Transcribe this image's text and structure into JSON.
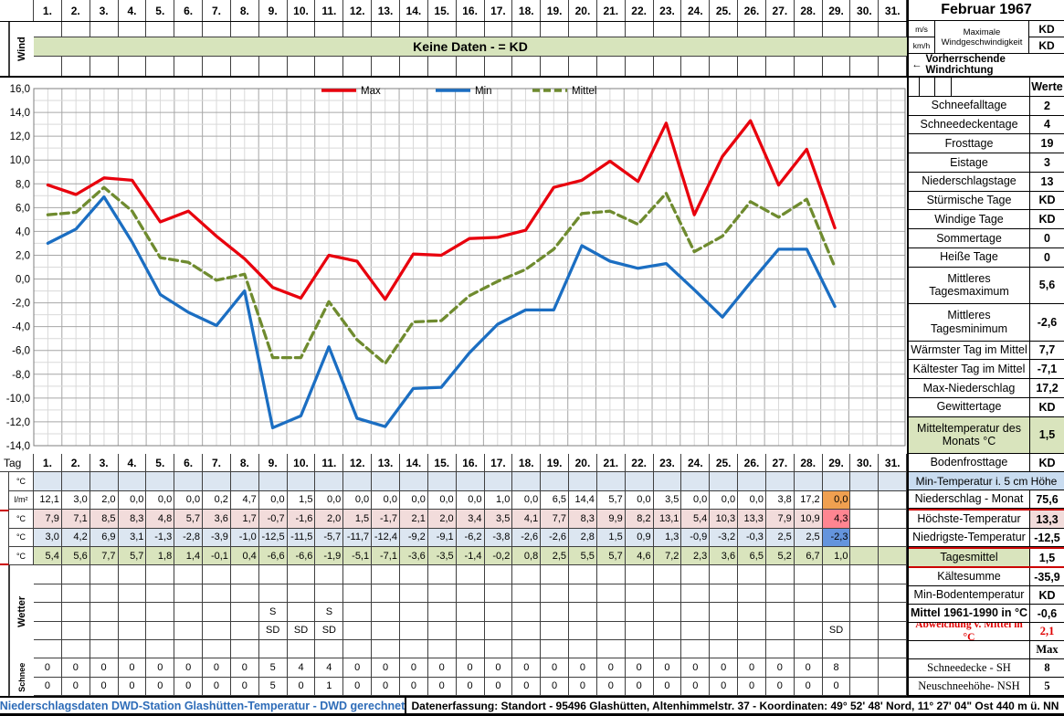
{
  "days": [
    "1.",
    "2.",
    "3.",
    "4.",
    "5.",
    "6.",
    "7.",
    "8.",
    "9.",
    "10.",
    "11.",
    "12.",
    "13.",
    "14.",
    "15.",
    "16.",
    "17.",
    "18.",
    "19.",
    "20.",
    "21.",
    "22.",
    "23.",
    "24.",
    "25.",
    "26.",
    "27.",
    "28.",
    "29.",
    "30.",
    "31."
  ],
  "wind": {
    "label": "Wind",
    "banner": "Keine Daten -  = KD"
  },
  "right_header": {
    "title": "Februar 1967",
    "unit1": "m/s",
    "unit2": "km/h",
    "wind_label": "Maximale Windgeschwindigkeit",
    "value1": "KD",
    "value2": "KD",
    "arrow": "←",
    "direction": "Vorherrschende Windrichtung"
  },
  "stats_upper": {
    "header": "Werte",
    "items": [
      {
        "label": "Schneefalltage",
        "value": "2"
      },
      {
        "label": "Schneedeckentage",
        "value": "4"
      },
      {
        "label": "Frosttage",
        "value": "19"
      },
      {
        "label": "Eistage",
        "value": "3"
      },
      {
        "label": "Niederschlagstage",
        "value": "13"
      },
      {
        "label": "Stürmische Tage",
        "value": "KD"
      },
      {
        "label": "Windige Tage",
        "value": "KD"
      },
      {
        "label": "Sommertage",
        "value": "0"
      },
      {
        "label": "Heiße Tage",
        "value": "0"
      },
      {
        "label": "Mittleres Tagesmaximum",
        "value": "5,6",
        "tall": true
      },
      {
        "label": "Mittleres Tagesminimum",
        "value": "-2,6",
        "tall": true
      },
      {
        "label": "Wärmster Tag im Mittel",
        "value": "7,7"
      },
      {
        "label": "Kältester Tag im Mittel",
        "value": "-7,1"
      },
      {
        "label": "Max-Niederschlag",
        "value": "17,2"
      },
      {
        "label": "Gewittertage",
        "value": "KD"
      },
      {
        "label": "Mitteltemperatur des Monats °C",
        "value": "1,5",
        "tall": true,
        "green": true
      }
    ]
  },
  "stats_lower": {
    "items": [
      {
        "label": "Bodenfrosttage",
        "value": "KD"
      },
      {
        "label": "Min-Temperatur i. 5 cm Höhe",
        "full": true,
        "blue": true
      },
      {
        "label": "Niederschlag - Monat",
        "value": "75,6"
      },
      {
        "label": "Höchste-Temperatur",
        "value": "13,3",
        "value_bg": "#f2dcdb",
        "red_top": true
      },
      {
        "label": "Niedrigste-Temperatur",
        "value": "-12,5"
      },
      {
        "label": "Tagesmittel",
        "value": "1,5",
        "label_bg": "#d9e4bd",
        "red_top": true,
        "red_bottom": true
      },
      {
        "label": "Kältesumme",
        "value": "-35,9"
      },
      {
        "label": "Min-Bodentemperatur",
        "value": "KD"
      },
      {
        "label": "Mittel 1961-1990 in °C",
        "value": "-0,6",
        "label_bold": true
      },
      {
        "label": "Abweichung v. Mittel in °C",
        "value": "2,1",
        "label_bold": true,
        "label_red": true,
        "value_red": true,
        "serif": true,
        "small": true
      },
      {
        "label": "",
        "value": "Max",
        "serif": true
      },
      {
        "label": "Schneedecke -   SH",
        "value": "8",
        "serif": true
      },
      {
        "label": "Neuschneehöhe- NSH",
        "value": "5",
        "serif": true
      }
    ]
  },
  "day_table": {
    "tag_label": "Tag",
    "rows": [
      {
        "id": "min-temp-5cm",
        "unit": "°C",
        "bg": "#dce6f1",
        "values": [
          "",
          "",
          "",
          "",
          "",
          "",
          "",
          "",
          "",
          "",
          "",
          "",
          "",
          "",
          "",
          "",
          "",
          "",
          "",
          "",
          "",
          "",
          "",
          "",
          "",
          "",
          "",
          "",
          "",
          "",
          ""
        ]
      },
      {
        "id": "niederschlag",
        "unit": "l/m²",
        "bg": "#ffffff",
        "values": [
          "12,1",
          "3,0",
          "2,0",
          "0,0",
          "0,0",
          "0,0",
          "0,2",
          "4,7",
          "0,0",
          "1,5",
          "0,0",
          "0,0",
          "0,0",
          "0,0",
          "0,0",
          "0,0",
          "1,0",
          "0,0",
          "6,5",
          "14,4",
          "5,7",
          "0,0",
          "3,5",
          "0,0",
          "0,0",
          "0,0",
          "3,8",
          "17,2",
          "0,0",
          "",
          ""
        ],
        "cell_bg": {
          "28": "#f0a050"
        }
      },
      {
        "id": "hoechste-temperatur",
        "unit": "°C",
        "bg": "#f2dcdb",
        "plain_tail": true,
        "red_top": true,
        "values": [
          "7,9",
          "7,1",
          "8,5",
          "8,3",
          "4,8",
          "5,7",
          "3,6",
          "1,7",
          "-0,7",
          "-1,6",
          "2,0",
          "1,5",
          "-1,7",
          "2,1",
          "2,0",
          "3,4",
          "3,5",
          "4,1",
          "7,7",
          "8,3",
          "9,9",
          "8,2",
          "13,1",
          "5,4",
          "10,3",
          "13,3",
          "7,9",
          "10,9",
          "4,3",
          "",
          ""
        ],
        "cell_bg": {
          "28": "#ff8591"
        }
      },
      {
        "id": "niedrigste-temperatur",
        "unit": "°C",
        "bg": "#dce6f1",
        "plain_tail": true,
        "values": [
          "3,0",
          "4,2",
          "6,9",
          "3,1",
          "-1,3",
          "-2,8",
          "-3,9",
          "-1,0",
          "-12,5",
          "-11,5",
          "-5,7",
          "-11,7",
          "-12,4",
          "-9,2",
          "-9,1",
          "-6,2",
          "-3,8",
          "-2,6",
          "-2,6",
          "2,8",
          "1,5",
          "0,9",
          "1,3",
          "-0,9",
          "-3,2",
          "-0,3",
          "2,5",
          "2,5",
          "-2,3",
          "",
          ""
        ],
        "cell_bg": {
          "28": "#6494dd"
        }
      },
      {
        "id": "tagesmittel",
        "unit": "°C",
        "bg": "#d9e4bd",
        "red_bottom": true,
        "values": [
          "5,4",
          "5,6",
          "7,7",
          "5,7",
          "1,8",
          "1,4",
          "-0,1",
          "0,4",
          "-6,6",
          "-6,6",
          "-1,9",
          "-5,1",
          "-7,1",
          "-3,6",
          "-3,5",
          "-1,4",
          "-0,2",
          "0,8",
          "2,5",
          "5,5",
          "5,7",
          "4,6",
          "7,2",
          "2,3",
          "3,6",
          "6,5",
          "5,2",
          "6,7",
          "1,0",
          "",
          ""
        ]
      }
    ],
    "wetter": {
      "label": "Wetter",
      "row_count": 5,
      "marks": [
        {},
        {},
        {
          "8": "S",
          "10": "S"
        },
        {
          "8": "SD",
          "9": "SD",
          "10": "SD",
          "28": "SD"
        },
        {}
      ]
    },
    "schnee": {
      "label": "Schnee",
      "rows": [
        [
          "0",
          "0",
          "0",
          "0",
          "0",
          "0",
          "0",
          "0",
          "5",
          "4",
          "4",
          "0",
          "0",
          "0",
          "0",
          "0",
          "0",
          "0",
          "0",
          "0",
          "0",
          "0",
          "0",
          "0",
          "0",
          "0",
          "0",
          "0",
          "8",
          "",
          ""
        ],
        [
          "0",
          "0",
          "0",
          "0",
          "0",
          "0",
          "0",
          "0",
          "5",
          "0",
          "1",
          "0",
          "0",
          "0",
          "0",
          "0",
          "0",
          "0",
          "0",
          "0",
          "0",
          "0",
          "0",
          "0",
          "0",
          "0",
          "0",
          "0",
          "0",
          "",
          ""
        ]
      ]
    }
  },
  "status_bar": {
    "left": "Niederschlagsdaten DWD-Station Glashütten-Temperatur -  DWD gerechnet",
    "right": "Datenerfassung:  Standort -  95496  Glashütten, Altenhimmelstr. 37 - Koordinaten:  49° 52' 48' Nord,   11° 27' 04\" Ost  440 m ü. NN"
  },
  "chart_data": {
    "type": "line",
    "title": "",
    "xlabel": "Tag (1.-31.)",
    "ylabel": "°C",
    "x_days": [
      1,
      2,
      3,
      4,
      5,
      6,
      7,
      8,
      9,
      10,
      11,
      12,
      13,
      14,
      15,
      16,
      17,
      18,
      19,
      20,
      21,
      22,
      23,
      24,
      25,
      26,
      27,
      28,
      29
    ],
    "x_range_days": [
      1,
      31
    ],
    "ylim": [
      -14,
      16
    ],
    "ytick_major": 2,
    "ytick_minor": 1,
    "grid": true,
    "legend_position": "top-center",
    "series": [
      {
        "name": "Max",
        "color": "#e8000d",
        "dash": false,
        "values": [
          7.9,
          7.1,
          8.5,
          8.3,
          4.8,
          5.7,
          3.6,
          1.7,
          -0.7,
          -1.6,
          2.0,
          1.5,
          -1.7,
          2.1,
          2.0,
          3.4,
          3.5,
          4.1,
          7.7,
          8.3,
          9.9,
          8.2,
          13.1,
          5.4,
          10.3,
          13.3,
          7.9,
          10.9,
          4.3
        ]
      },
      {
        "name": "Min",
        "color": "#1b6ec2",
        "dash": false,
        "values": [
          3.0,
          4.2,
          6.9,
          3.1,
          -1.3,
          -2.8,
          -3.9,
          -1.0,
          -12.5,
          -11.5,
          -5.7,
          -11.7,
          -12.4,
          -9.2,
          -9.1,
          -6.2,
          -3.8,
          -2.6,
          -2.6,
          2.8,
          1.5,
          0.9,
          1.3,
          -0.9,
          -3.2,
          -0.3,
          2.5,
          2.5,
          -2.3
        ]
      },
      {
        "name": "Mittel",
        "color": "#6f8b2f",
        "dash": true,
        "values": [
          5.4,
          5.6,
          7.7,
          5.7,
          1.8,
          1.4,
          -0.1,
          0.4,
          -6.6,
          -6.6,
          -1.9,
          -5.1,
          -7.1,
          -3.6,
          -3.5,
          -1.4,
          -0.2,
          0.8,
          2.5,
          5.5,
          5.7,
          4.6,
          7.2,
          2.3,
          3.6,
          6.5,
          5.2,
          6.7,
          1.0
        ]
      }
    ]
  },
  "colors": {
    "banner_green": "#d7e4bc",
    "row_blue": "#dce6f1",
    "row_pink": "#f2dcdb",
    "row_green": "#d9e4bd",
    "header_blue": "#c9dcf0",
    "highlight_orange": "#f0a050",
    "highlight_red": "#ff8591",
    "highlight_blue": "#6494dd",
    "grid_minor": "#d9d9d9",
    "grid_major": "#a6a6a6",
    "status_blue": "#2e6cb8",
    "section_red": "#cc0000"
  }
}
